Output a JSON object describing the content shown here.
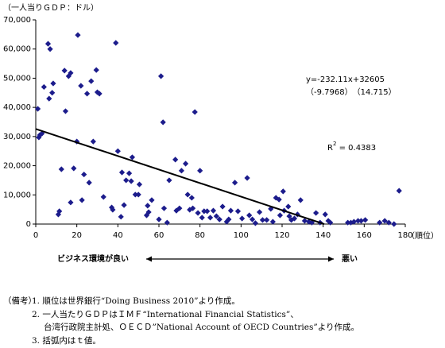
{
  "chart_data": {
    "type": "scatter",
    "y_label": "（一人当りＧＤＰ：ドル）",
    "x_label": "（順位）",
    "color": "#1c1c8c",
    "xlim": [
      0,
      180
    ],
    "xticks": [
      0,
      20,
      40,
      60,
      80,
      100,
      120,
      140,
      160,
      180
    ],
    "ylim": [
      0,
      70000
    ],
    "yticks": [
      0,
      {
        "value": 10000,
        "label": "10,000"
      },
      {
        "value": 20000,
        "label": "20,000"
      },
      {
        "value": 30000,
        "label": "30,000"
      },
      {
        "value": 40000,
        "label": "40,000"
      },
      {
        "value": 50000,
        "label": "50,000"
      },
      {
        "value": 60000,
        "label": "60,000"
      },
      {
        "value": 70000,
        "label": "70,000"
      }
    ],
    "x": [
      1,
      1.5,
      2,
      3,
      4,
      6,
      7,
      6.5,
      8.5,
      8,
      11,
      11.5,
      12.5,
      14,
      16,
      14.5,
      17,
      17,
      18.5,
      20,
      20.5,
      22,
      22.5,
      23.5,
      25,
      26,
      27,
      28,
      29.5,
      30,
      31,
      33,
      37,
      37.5,
      39,
      40,
      41.5,
      42,
      43,
      44,
      45.5,
      46.5,
      47,
      48.5,
      50,
      50.5,
      54,
      54.5,
      55,
      56.5,
      60,
      61,
      62,
      62.5,
      65,
      68,
      64,
      68.5,
      70,
      71,
      73,
      74,
      75,
      76,
      77.5,
      76.5,
      79,
      80,
      81,
      82,
      83.5,
      85,
      86.5,
      88,
      89.5,
      91,
      93,
      94,
      95,
      97,
      98.5,
      100.5,
      103,
      104,
      105.5,
      107,
      109,
      110.5,
      112.5,
      114.5,
      115.5,
      117,
      118.5,
      119,
      120.5,
      121,
      123,
      123.5,
      124.5,
      126,
      127.5,
      129,
      131,
      133,
      134.5,
      136.5,
      138.5,
      141,
      142.5,
      143.5,
      152,
      153.5,
      155,
      157,
      158.5,
      160.5,
      167.5,
      170,
      172,
      174.5,
      177
    ],
    "values": [
      39500,
      29700,
      30500,
      31000,
      47000,
      61800,
      60000,
      43000,
      48200,
      45000,
      3300,
      4400,
      18800,
      52600,
      50700,
      38700,
      51800,
      7400,
      19100,
      28300,
      64800,
      47400,
      8200,
      17000,
      44700,
      14200,
      49000,
      28300,
      52800,
      45200,
      44700,
      9300,
      5700,
      4900,
      62100,
      25000,
      2500,
      17700,
      6500,
      15000,
      17400,
      14700,
      22900,
      10100,
      10100,
      13600,
      3000,
      6300,
      4100,
      8200,
      1600,
      50700,
      34900,
      5400,
      15000,
      22100,
      500,
      4600,
      5400,
      18300,
      20700,
      10100,
      4900,
      9000,
      38400,
      5400,
      3800,
      18300,
      2200,
      4400,
      4400,
      2200,
      4600,
      2700,
      1600,
      6000,
      800,
      1600,
      4600,
      14200,
      4400,
      1900,
      15800,
      3000,
      1600,
      300,
      4100,
      1400,
      1400,
      5200,
      800,
      9000,
      8400,
      3000,
      11200,
      4600,
      6000,
      2700,
      1400,
      1900,
      3300,
      8200,
      1100,
      800,
      500,
      3800,
      500,
      3300,
      1100,
      500,
      500,
      500,
      800,
      1100,
      1100,
      1400,
      500,
      1100,
      500,
      0,
      11400
    ],
    "trend_line": {
      "x": [
        0,
        140.5
      ],
      "values": [
        32605,
        0
      ]
    },
    "equation": "y=-232.11x+32605",
    "t_values": "（-9.7968）　（14.715）",
    "r2": {
      "base": "R",
      "sup": "2",
      "rest": " = 0.4383"
    },
    "arrow_left_label": "ビジネス環境が良い",
    "arrow_right_label": "悪い"
  },
  "notes": {
    "heading": "（備考）",
    "lines": [
      "1.  順位は世界銀行“Doing Business 2010”より作成。",
      "2.  一人当たりＧＤＰはＩＭＦ“International Financial Statistics”、",
      "台湾行政院主計処、ＯＥＣＤ”National Account of OECD Countries”より作成。",
      "3.  括弧内はｔ値。"
    ]
  }
}
